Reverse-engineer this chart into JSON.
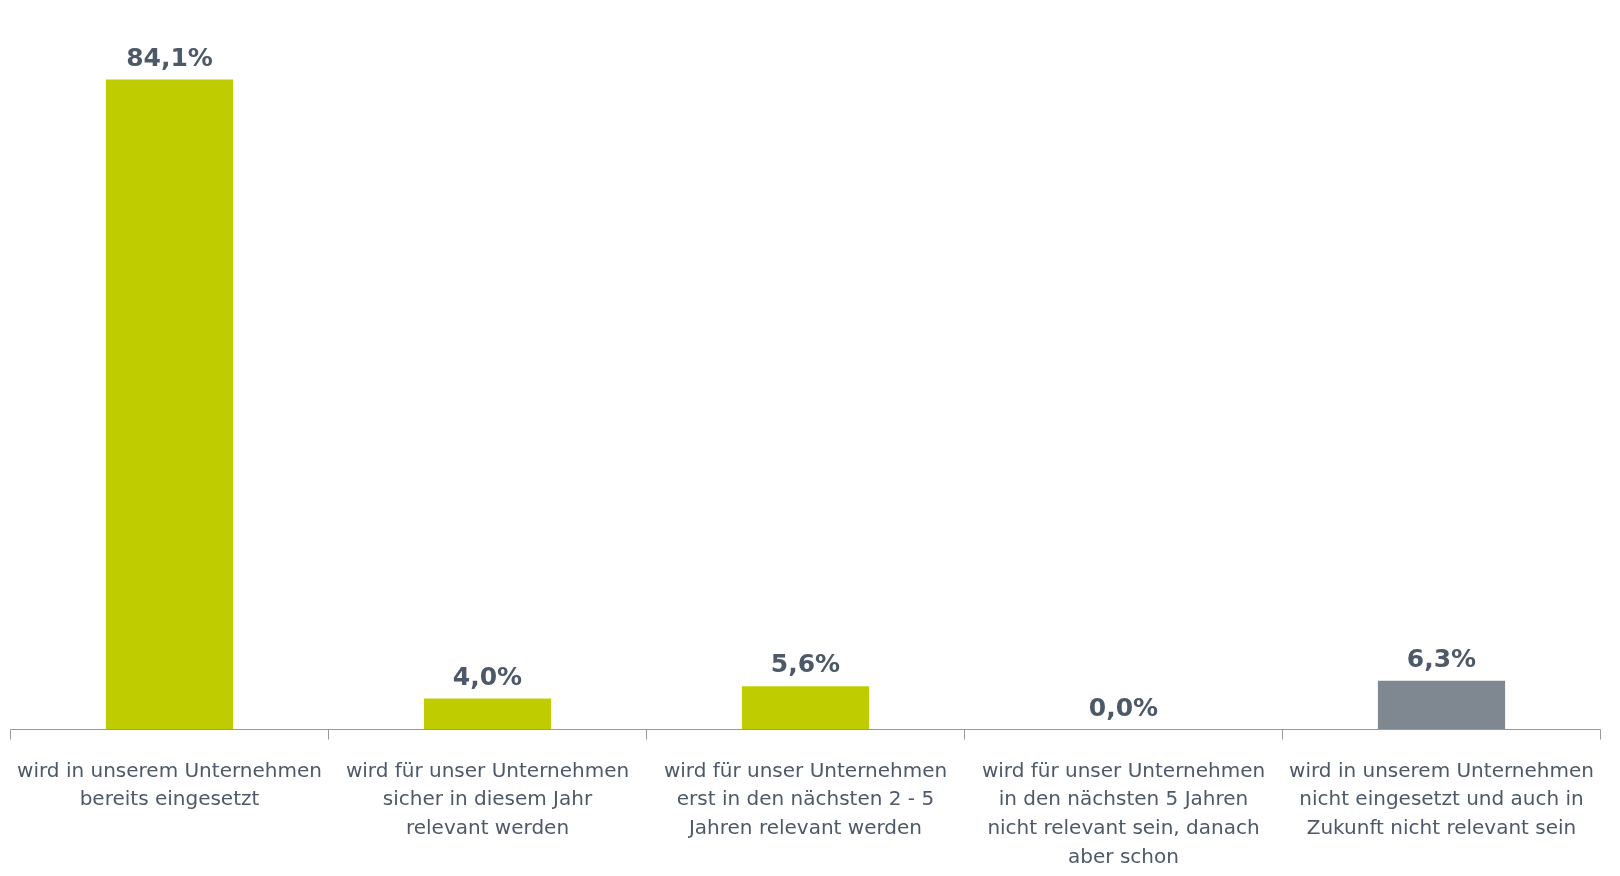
{
  "chart_data": {
    "type": "bar",
    "categories": [
      "wird in unserem Unternehmen bereits eingesetzt",
      "wird für unser Unternehmen sicher in diesem Jahr relevant werden",
      "wird für unser Unternehmen erst in den nächsten 2 - 5 Jahren relevant werden",
      "wird für unser Unternehmen in den nächsten 5 Jahren nicht relevant sein, danach aber schon",
      "wird in unserem Unternehmen nicht eingesetzt und auch in Zukunft nicht relevant sein"
    ],
    "values": [
      84.1,
      4.0,
      5.6,
      0.0,
      6.3
    ],
    "value_labels": [
      "84,1%",
      "4,0%",
      "5,6%",
      "0,0%",
      "6,3%"
    ],
    "colors": [
      "#bfcd00",
      "#bfcd00",
      "#bfcd00",
      "#bfcd00",
      "#7f8790"
    ],
    "grid": false
  }
}
